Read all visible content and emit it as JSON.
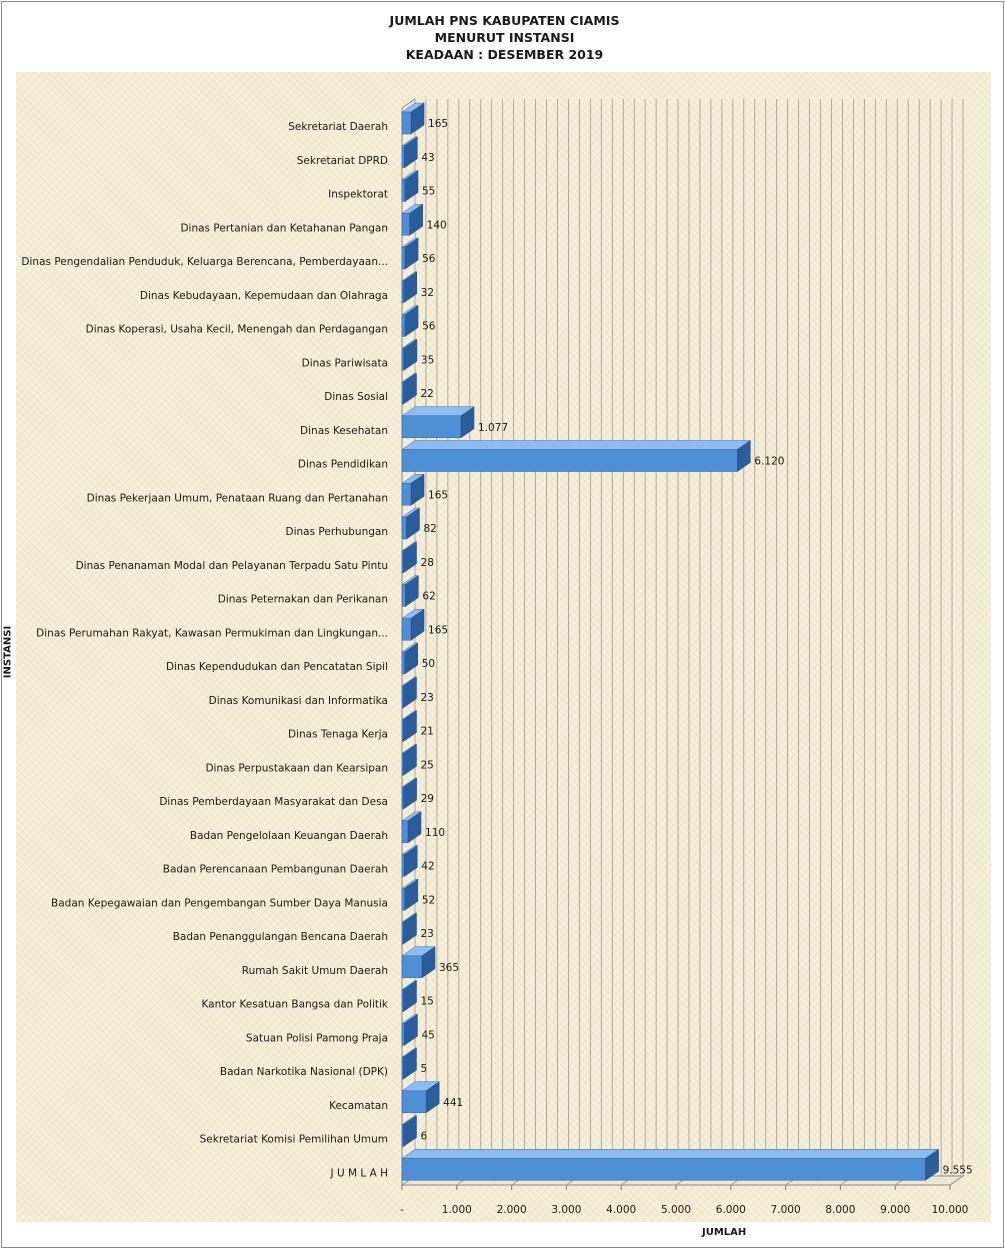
{
  "chart_data": {
    "type": "bar",
    "orientation": "horizontal",
    "title": [
      "JUMLAH PNS KABUPATEN CIAMIS",
      "MENURUT INSTANSI",
      "KEADAAN : DESEMBER 2019"
    ],
    "xlabel": "JUMLAH",
    "ylabel": "INSTANSI",
    "xlim": [
      0,
      10000
    ],
    "xticks": [
      0,
      1000,
      2000,
      3000,
      4000,
      5000,
      6000,
      7000,
      8000,
      9000,
      10000
    ],
    "xtick_labels": [
      "-",
      "1.000",
      "2.000",
      "3.000",
      "4.000",
      "5.000",
      "6.000",
      "7.000",
      "8.000",
      "9.000",
      "10.000"
    ],
    "grid": true,
    "style": "3d",
    "bar_color": "#4f8fd6",
    "categories": [
      "Sekretariat Daerah",
      "Sekretariat DPRD",
      "Inspektorat",
      "Dinas Pertanian dan Ketahanan Pangan",
      "Dinas Pengendalian Penduduk, Keluarga Berencana, Pemberdayaan...",
      "Dinas Kebudayaan, Kepemudaan dan Olahraga",
      "Dinas Koperasi, Usaha Kecil, Menengah dan Perdagangan",
      "Dinas Pariwisata",
      "Dinas Sosial",
      "Dinas Kesehatan",
      "Dinas Pendidikan",
      "Dinas Pekerjaan Umum, Penataan Ruang dan Pertanahan",
      "Dinas Perhubungan",
      "Dinas Penanaman Modal dan Pelayanan Terpadu Satu Pintu",
      "Dinas Peternakan dan Perikanan",
      "Dinas Perumahan Rakyat, Kawasan Permukiman dan Lingkungan...",
      "Dinas Kependudukan dan Pencatatan Sipil",
      "Dinas Komunikasi dan Informatika",
      "Dinas Tenaga Kerja",
      "Dinas Perpustakaan dan Kearsipan",
      "Dinas Pemberdayaan Masyarakat dan Desa",
      "Badan Pengelolaan Keuangan Daerah",
      "Badan Perencanaan Pembangunan Daerah",
      "Badan Kepegawaian dan Pengembangan Sumber Daya Manusia",
      "Badan Penanggulangan Bencana Daerah",
      "Rumah Sakit Umum Daerah",
      "Kantor Kesatuan Bangsa dan Politik",
      "Satuan Polisi Pamong Praja",
      "Badan Narkotika Nasional (DPK)",
      "Kecamatan",
      "Sekretariat Komisi Pemilihan Umum",
      "J U M L A H"
    ],
    "values": [
      165,
      43,
      55,
      140,
      56,
      32,
      56,
      35,
      22,
      1077,
      6120,
      165,
      82,
      28,
      62,
      165,
      50,
      23,
      21,
      25,
      29,
      110,
      42,
      52,
      23,
      365,
      15,
      45,
      5,
      441,
      6,
      9555
    ],
    "value_labels": [
      "165",
      "43",
      "55",
      "140",
      "56",
      "32",
      "56",
      "35",
      "22",
      "1.077",
      "6.120",
      "165",
      "82",
      "28",
      "62",
      "165",
      "50",
      "23",
      "21",
      "25",
      "29",
      "110",
      "42",
      "52",
      "23",
      "365",
      "15",
      "45",
      "5",
      "441",
      "6",
      "9.555"
    ]
  }
}
